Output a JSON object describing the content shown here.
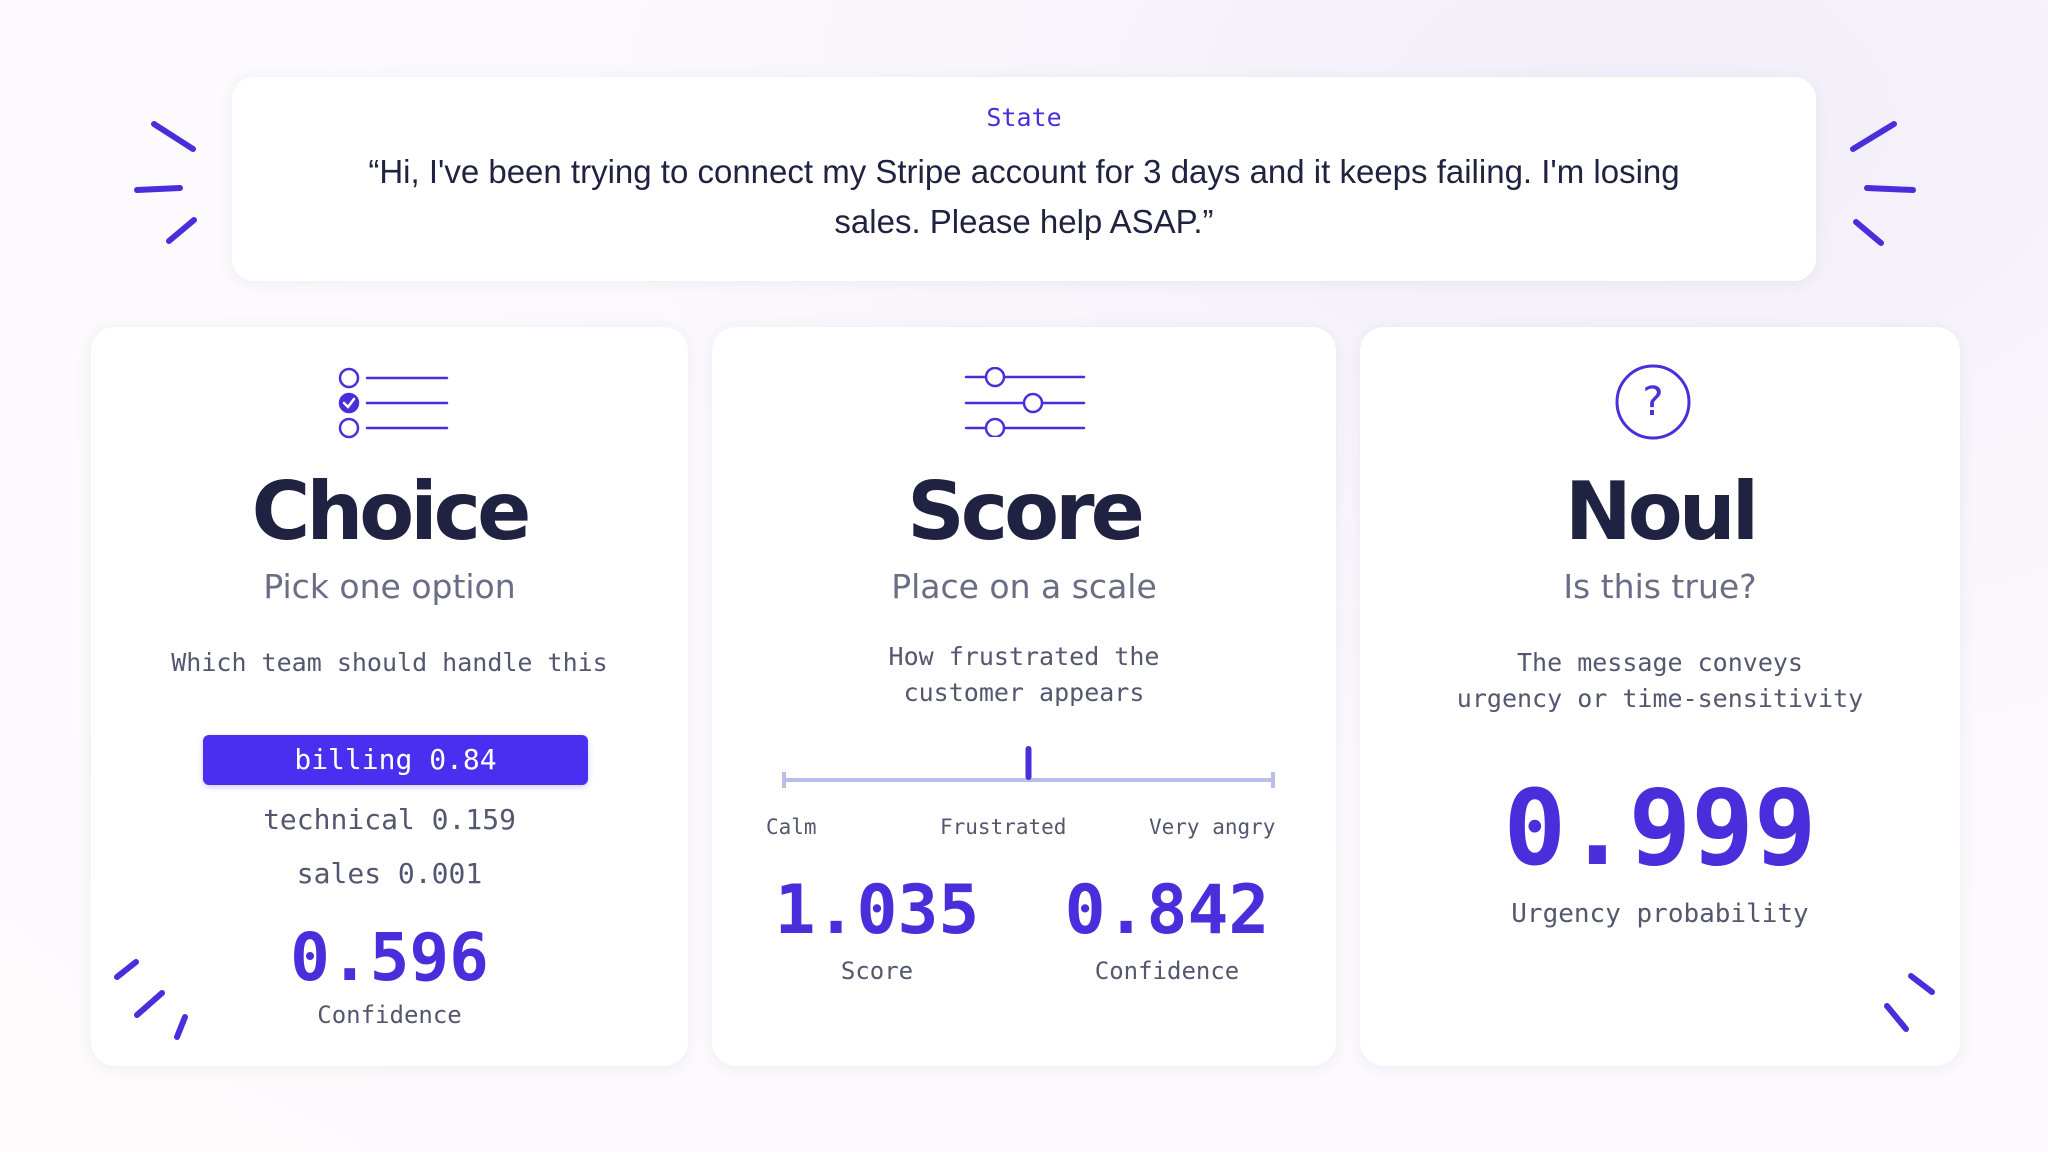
{
  "state": {
    "label": "State",
    "quote": "“Hi, I've been trying to connect my Stripe account for 3 days and it keeps failing. I'm losing sales. Please help ASAP.”"
  },
  "cards": {
    "choice": {
      "icon": "checklist-icon",
      "title": "Choice",
      "subtitle": "Pick one option",
      "question": "Which team should handle this",
      "options": [
        {
          "label": "billing 0.84",
          "selected": true
        },
        {
          "label": "technical 0.159",
          "selected": false
        },
        {
          "label": "sales 0.001",
          "selected": false
        }
      ],
      "value": "0.596",
      "value_label": "Confidence"
    },
    "score": {
      "icon": "sliders-icon",
      "title": "Score",
      "subtitle": "Place on a scale",
      "question_line1": "How frustrated the",
      "question_line2": "customer appears",
      "scale": {
        "labels": [
          "Calm",
          "Frustrated",
          "Very angry"
        ],
        "marker_fraction": 0.5
      },
      "score_value": "1.035",
      "score_label": "Score",
      "confidence_value": "0.842",
      "confidence_label": "Confidence"
    },
    "noul": {
      "icon": "question-circle-icon",
      "title": "Noul",
      "subtitle": "Is this true?",
      "question_line1": "The message conveys",
      "question_line2": "urgency or time-sensitivity",
      "value": "0.999",
      "value_label": "Urgency probability"
    }
  },
  "colors": {
    "accent": "#4b2edb",
    "accent_button": "#4b2ff0",
    "text_dark": "#1f2240",
    "text_muted": "#545770",
    "scale_line": "#b9bfea"
  }
}
